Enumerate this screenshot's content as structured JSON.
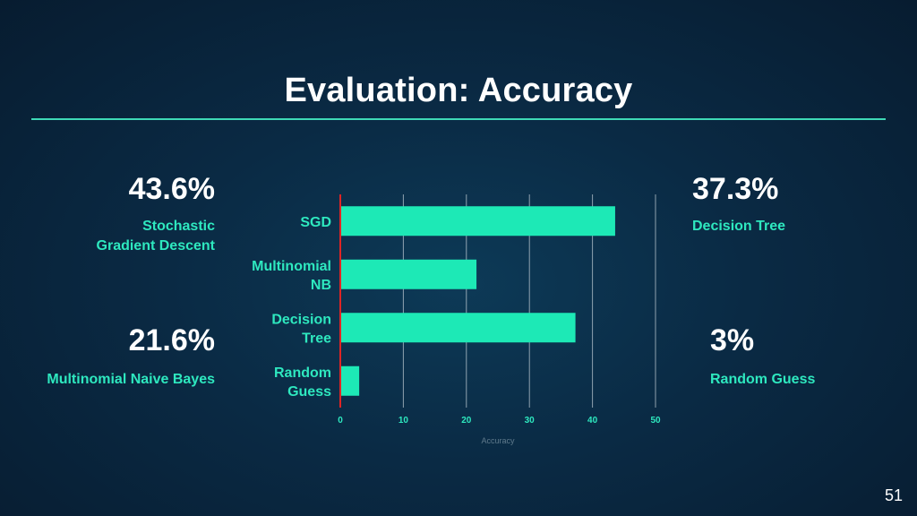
{
  "slide": {
    "title": "Evaluation: Accuracy",
    "page_number": "51"
  },
  "stats": {
    "sgd": {
      "value": "43.6%",
      "label_line1": "Stochastic",
      "label_line2": "Gradient Descent"
    },
    "mnb": {
      "value": "21.6%",
      "label": "Multinomial Naive Bayes"
    },
    "dt": {
      "value": "37.3%",
      "label": "Decision Tree"
    },
    "rg": {
      "value": "3%",
      "label": "Random Guess"
    }
  },
  "colors": {
    "bar": "#1de9b6",
    "axis_line": "#e02424",
    "grid": "#c9d3da",
    "accent_text": "#2ee8bf"
  },
  "chart_data": {
    "type": "bar",
    "orientation": "horizontal",
    "categories": [
      [
        "SGD"
      ],
      [
        "Multinomial",
        "NB"
      ],
      [
        "Decision",
        "Tree"
      ],
      [
        "Random",
        "Guess"
      ]
    ],
    "values": [
      43.6,
      21.6,
      37.3,
      3
    ],
    "xlabel": "Accuracy",
    "xlim": [
      0,
      50
    ],
    "xticks": [
      0,
      10,
      20,
      30,
      40,
      50
    ],
    "grid": true
  }
}
